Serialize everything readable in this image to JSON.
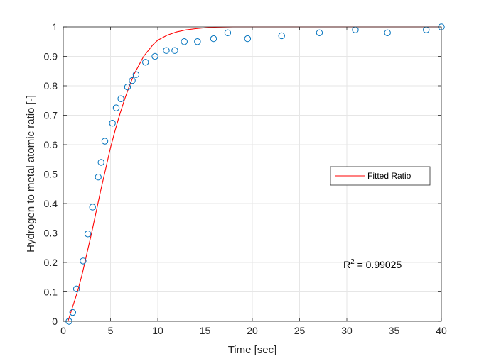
{
  "chart_data": {
    "type": "scatter",
    "title": "",
    "xlabel": "Time [sec]",
    "ylabel": "Hydrogen to metal atomic ratio [-]",
    "xlim": [
      0,
      40
    ],
    "ylim": [
      0,
      1
    ],
    "xticks": [
      0,
      5,
      10,
      15,
      20,
      25,
      30,
      35,
      40
    ],
    "yticks": [
      0,
      0.1,
      0.2,
      0.3,
      0.4,
      0.5,
      0.6,
      0.7,
      0.8,
      0.9,
      1
    ],
    "grid": true,
    "legend_position": "center-right",
    "series": [
      {
        "kind": "markers",
        "marker": "circle",
        "color": "#0072BD",
        "x": [
          0.6,
          1.0,
          1.4,
          2.1,
          2.6,
          3.1,
          3.7,
          4.0,
          4.4,
          5.2,
          5.6,
          6.1,
          6.8,
          7.3,
          7.7,
          8.7,
          9.7,
          10.9,
          11.8,
          12.8,
          14.2,
          15.9,
          17.4,
          19.5,
          23.1,
          27.1,
          30.9,
          34.3,
          38.4,
          40.0
        ],
        "y": [
          0.0,
          0.03,
          0.11,
          0.205,
          0.297,
          0.388,
          0.49,
          0.54,
          0.612,
          0.673,
          0.725,
          0.756,
          0.796,
          0.818,
          0.838,
          0.88,
          0.9,
          0.92,
          0.92,
          0.95,
          0.95,
          0.96,
          0.98,
          0.96,
          0.97,
          0.98,
          0.99,
          0.98,
          0.99,
          1.0
        ]
      },
      {
        "kind": "line",
        "name": "Fitted Ratio",
        "color": "#FF0000",
        "x": [
          0.5,
          1,
          1.5,
          2,
          2.5,
          3,
          3.5,
          4,
          4.5,
          5,
          5.5,
          6,
          6.5,
          7,
          7.5,
          8,
          8.5,
          9,
          9.5,
          10,
          11,
          12,
          13,
          14,
          15,
          16,
          18,
          20,
          25,
          30,
          35,
          40
        ],
        "y": [
          0.0,
          0.05,
          0.1,
          0.16,
          0.23,
          0.3,
          0.375,
          0.45,
          0.52,
          0.59,
          0.65,
          0.705,
          0.755,
          0.8,
          0.84,
          0.87,
          0.9,
          0.92,
          0.94,
          0.955,
          0.972,
          0.983,
          0.99,
          0.994,
          0.997,
          0.999,
          1.0,
          1.0,
          1.0,
          1.0,
          1.0,
          1.0
        ]
      }
    ],
    "annotation": {
      "prefix": "R",
      "superscript": "2",
      "suffix": " = 0.99025",
      "x": 30,
      "y": 0.19
    }
  }
}
